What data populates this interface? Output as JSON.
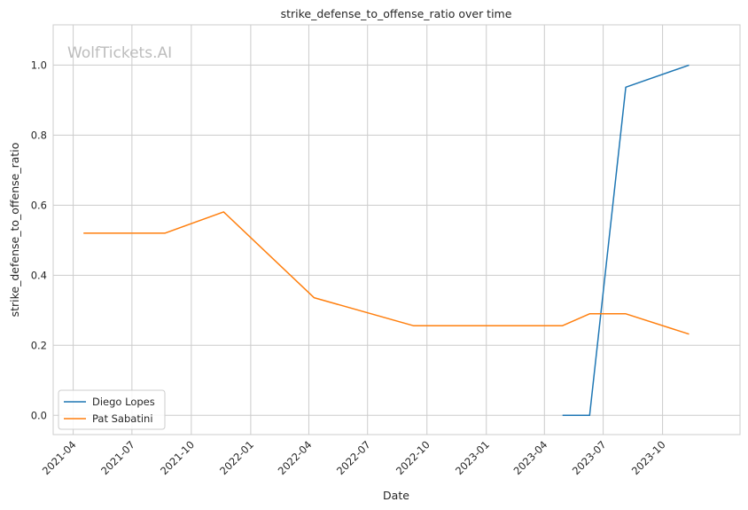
{
  "chart_data": {
    "type": "line",
    "title": "strike_defense_to_offense_ratio over time",
    "xlabel": "Date",
    "ylabel": "strike_defense_to_offense_ratio",
    "watermark": "WolfTickets.AI",
    "x_ticks": [
      "2021-04",
      "2021-07",
      "2021-10",
      "2022-01",
      "2022-04",
      "2022-07",
      "2022-10",
      "2023-01",
      "2023-04",
      "2023-07",
      "2023-10"
    ],
    "y_ticks": [
      "0.0",
      "0.2",
      "0.4",
      "0.6",
      "0.8",
      "1.0"
    ],
    "xlim": [
      "2021-03-01",
      "2024-01-29"
    ],
    "ylim": [
      -0.055,
      1.115
    ],
    "grid": true,
    "legend_position": "lower-left",
    "series": [
      {
        "name": "Diego Lopes",
        "color": "#1f77b4",
        "points": [
          {
            "x": "2023-04-29",
            "y": 0.0
          },
          {
            "x": "2023-06-10",
            "y": 0.0
          },
          {
            "x": "2023-08-05",
            "y": 0.937
          },
          {
            "x": "2023-11-11",
            "y": 1.0
          }
        ]
      },
      {
        "name": "Pat Sabatini",
        "color": "#ff7f0e",
        "points": [
          {
            "x": "2021-04-17",
            "y": 0.52
          },
          {
            "x": "2021-08-21",
            "y": 0.52
          },
          {
            "x": "2021-11-20",
            "y": 0.581
          },
          {
            "x": "2022-04-09",
            "y": 0.336
          },
          {
            "x": "2022-09-10",
            "y": 0.256
          },
          {
            "x": "2023-04-29",
            "y": 0.256
          },
          {
            "x": "2023-06-10",
            "y": 0.29
          },
          {
            "x": "2023-08-05",
            "y": 0.29
          },
          {
            "x": "2023-11-11",
            "y": 0.232
          }
        ]
      }
    ]
  }
}
